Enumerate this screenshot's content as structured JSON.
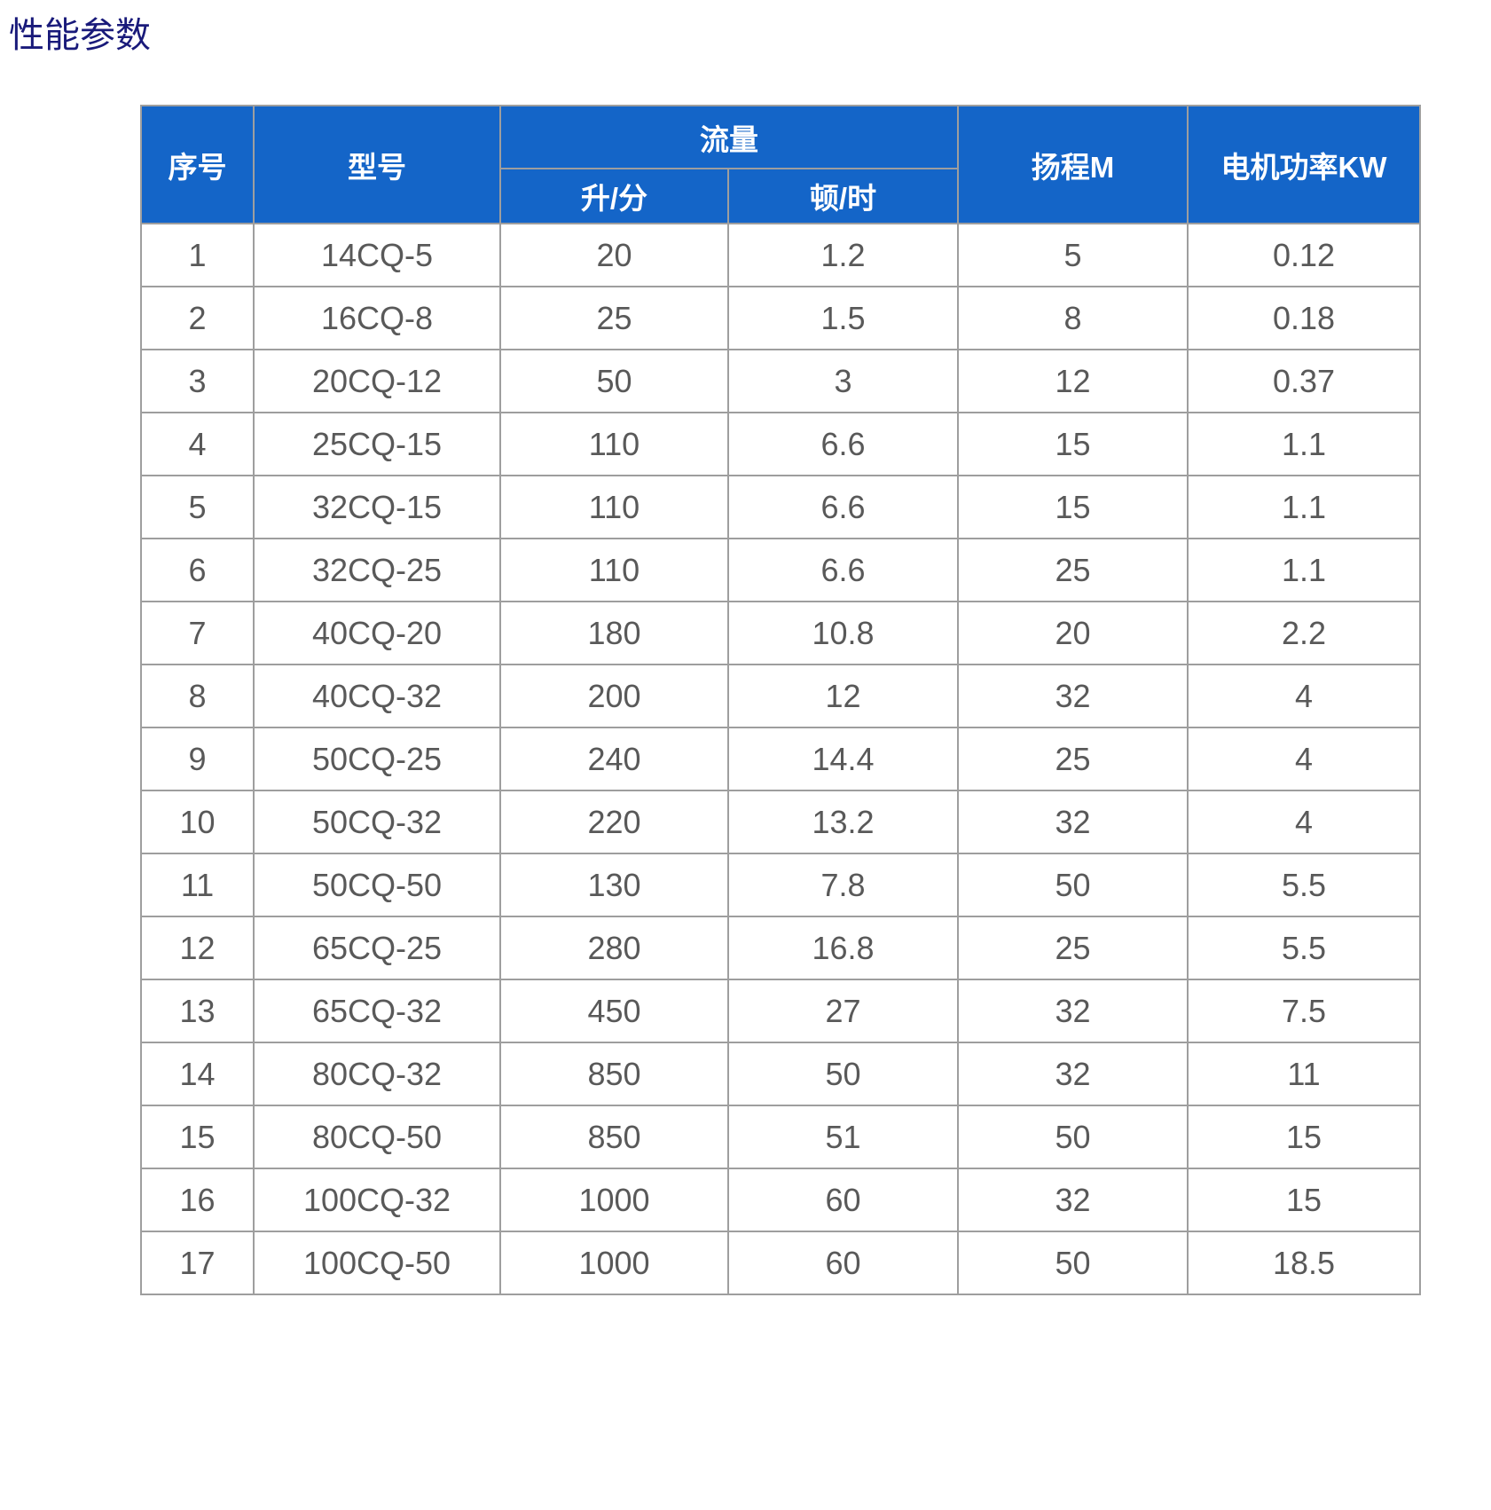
{
  "page": {
    "title": "性能参数"
  },
  "table": {
    "headers": {
      "no": "序号",
      "model": "型号",
      "flow": "流量",
      "flow_l_min": "升/分",
      "flow_t_h": "顿/时",
      "head_m": "扬程M",
      "motor_power_kw": "电机功率KW"
    },
    "rows": [
      [
        "1",
        "14CQ-5",
        "20",
        "1.2",
        "5",
        "0.12"
      ],
      [
        "2",
        "16CQ-8",
        "25",
        "1.5",
        "8",
        "0.18"
      ],
      [
        "3",
        "20CQ-12",
        "50",
        "3",
        "12",
        "0.37"
      ],
      [
        "4",
        "25CQ-15",
        "110",
        "6.6",
        "15",
        "1.1"
      ],
      [
        "5",
        "32CQ-15",
        "110",
        "6.6",
        "15",
        "1.1"
      ],
      [
        "6",
        "32CQ-25",
        "110",
        "6.6",
        "25",
        "1.1"
      ],
      [
        "7",
        "40CQ-20",
        "180",
        "10.8",
        "20",
        "2.2"
      ],
      [
        "8",
        "40CQ-32",
        "200",
        "12",
        "32",
        "4"
      ],
      [
        "9",
        "50CQ-25",
        "240",
        "14.4",
        "25",
        "4"
      ],
      [
        "10",
        "50CQ-32",
        "220",
        "13.2",
        "32",
        "4"
      ],
      [
        "11",
        "50CQ-50",
        "130",
        "7.8",
        "50",
        "5.5"
      ],
      [
        "12",
        "65CQ-25",
        "280",
        "16.8",
        "25",
        "5.5"
      ],
      [
        "13",
        "65CQ-32",
        "450",
        "27",
        "32",
        "7.5"
      ],
      [
        "14",
        "80CQ-32",
        "850",
        "50",
        "32",
        "11"
      ],
      [
        "15",
        "80CQ-50",
        "850",
        "51",
        "50",
        "15"
      ],
      [
        "16",
        "100CQ-32",
        "1000",
        "60",
        "32",
        "15"
      ],
      [
        "17",
        "100CQ-50",
        "1000",
        "60",
        "50",
        "18.5"
      ]
    ],
    "colors": {
      "header_bg": "#1465c8",
      "header_text": "#ffffff",
      "body_text": "#595959",
      "border": "#9e9e9e",
      "title_text": "#191a7a"
    }
  }
}
